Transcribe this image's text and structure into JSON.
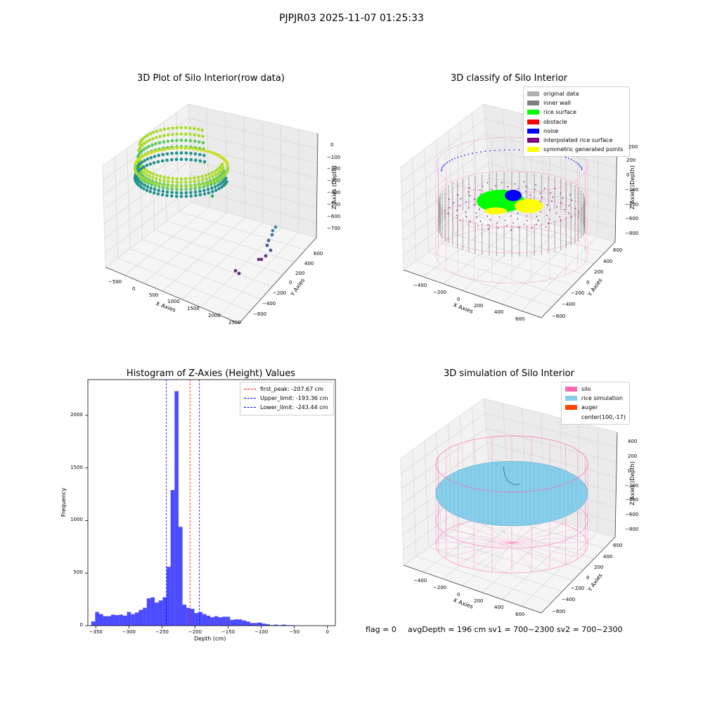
{
  "suptitle": "PJPJR03 2025-11-07 01:25:33",
  "colors": {
    "silo_pink": "#ff69b4",
    "rice_blue": "#87ceeb",
    "auger": "#ff4500",
    "hist_blue": "#0000ff"
  },
  "chart_data": [
    {
      "type": "scatter3d",
      "title": "3D Plot of Silo Interior(row data)",
      "xlabel": "X Axies",
      "ylabel": "Y Axies",
      "zlabel": "Z Axies (Depth)",
      "x_ticks": [
        "−500",
        "0",
        "500",
        "1000",
        "1500",
        "2000",
        "2500"
      ],
      "y_ticks": [
        "600",
        "400",
        "200",
        "0",
        "−200",
        "−400",
        "−600"
      ],
      "z_ticks": [
        "0",
        "−100",
        "−200",
        "−300",
        "−400",
        "−500",
        "−600",
        "−700"
      ],
      "colormap": "viridis"
    },
    {
      "type": "scatter3d",
      "title": "3D classify of Silo Interior",
      "xlabel": "X Axies",
      "ylabel": "Y Axies",
      "zlabel": "Z Axies (Depth)",
      "x_ticks": [
        "−400",
        "−200",
        "0",
        "200",
        "400",
        "600"
      ],
      "y_ticks": [
        "600",
        "400",
        "200",
        "0",
        "−200",
        "−400",
        "−600"
      ],
      "z_ticks": [
        "200",
        "0",
        "−200",
        "−400",
        "−600",
        "−800"
      ],
      "legend": [
        {
          "label": "original data",
          "color": "#b0b0b0"
        },
        {
          "label": "inner wall",
          "color": "#808080"
        },
        {
          "label": "rice surface",
          "color": "#00ff00"
        },
        {
          "label": "obstacle",
          "color": "#ff0000"
        },
        {
          "label": "noise",
          "color": "#0000ff"
        },
        {
          "label": "interpolated rice surface",
          "color": "#800080"
        },
        {
          "label": "symmetric generated points",
          "color": "#ffff00"
        }
      ]
    },
    {
      "type": "bar",
      "title": "Histogram of Z-Axies (Height) Values",
      "xlabel": "Depth (cm)",
      "ylabel": "Frequency",
      "xlim": [
        -362,
        12
      ],
      "ylim": [
        0,
        2340
      ],
      "x_ticks": [
        -350,
        -300,
        -250,
        -200,
        -150,
        -100,
        -50,
        0
      ],
      "y_ticks": [
        0,
        500,
        1000,
        1500,
        2000
      ],
      "bin_start": -357,
      "bin_width": 6,
      "values": [
        40,
        130,
        110,
        90,
        90,
        105,
        100,
        105,
        95,
        130,
        110,
        125,
        150,
        170,
        260,
        270,
        220,
        240,
        270,
        560,
        1290,
        2230,
        940,
        200,
        170,
        160,
        120,
        130,
        110,
        95,
        80,
        90,
        80,
        85,
        85,
        55,
        60,
        60,
        50,
        40,
        25,
        25,
        30,
        20,
        15,
        5,
        10,
        5,
        10,
        5,
        5,
        0,
        0,
        0,
        0,
        0,
        0,
        0,
        0,
        0,
        0,
        0
      ],
      "bar_color": "#0000ff",
      "bar_opacity": 0.7,
      "lines": [
        {
          "label": "first_peak: -207.67 cm",
          "x": -207.67,
          "color": "#ff0000"
        },
        {
          "label": "Upper_limit: -193.36 cm",
          "x": -193.36,
          "color": "#0000ff"
        },
        {
          "label": "Lower_limit: -243.44 cm",
          "x": -243.44,
          "color": "#0000ff"
        }
      ],
      "legend_position": "top-right"
    },
    {
      "type": "surface3d",
      "title": "3D simulation of Silo Interior",
      "xlabel": "X Axies",
      "ylabel": "Y Axies",
      "zlabel": "Z Axies (Depth)",
      "x_ticks": [
        "−400",
        "−200",
        "0",
        "200",
        "400",
        "600"
      ],
      "y_ticks": [
        "600",
        "400",
        "200",
        "0",
        "−200",
        "−400",
        "−600"
      ],
      "z_ticks": [
        "400",
        "200",
        "0",
        "−200",
        "−400",
        "−600",
        "−800"
      ],
      "legend": [
        {
          "label": "silo",
          "color": "#ff69b4"
        },
        {
          "label": "rice simulation",
          "color": "#87ceeb"
        },
        {
          "label": "auger",
          "color": "#ff4500"
        },
        {
          "label": "center(100,-17)",
          "color": ""
        }
      ]
    }
  ],
  "footer": {
    "flag": "flag = 0",
    "stats": "avgDepth = 196 cm  sv1 = 700~2300  sv2 = 700~2300"
  }
}
